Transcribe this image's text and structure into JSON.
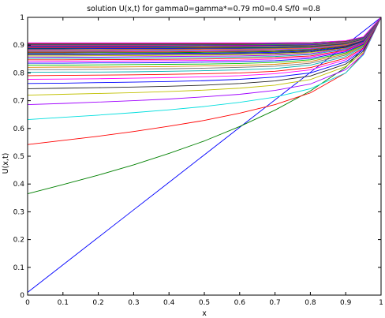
{
  "chart_data": {
    "type": "line",
    "title": "solution U(x,t) for gamma0=gamma*=0.79  m0=0.4  S/f0 =0.8",
    "xlabel": "x",
    "ylabel": "U(x,t)",
    "xlim": [
      0,
      1
    ],
    "ylim": [
      0,
      1
    ],
    "xticks": [
      "0",
      "0.1",
      "0.2",
      "0.3",
      "0.4",
      "0.5",
      "0.6",
      "0.7",
      "0.8",
      "0.9",
      "1"
    ],
    "yticks": [
      "0",
      "0.1",
      "0.2",
      "0.3",
      "0.4",
      "0.5",
      "0.6",
      "0.7",
      "0.8",
      "0.9",
      "1"
    ],
    "grid": false,
    "legend": "none",
    "x": [
      0,
      0.1,
      0.2,
      0.3,
      0.4,
      0.5,
      0.6,
      0.7,
      0.8,
      0.9,
      0.95,
      1
    ],
    "series": [
      {
        "color": "#0000ff",
        "values": [
          0.01,
          0.109,
          0.208,
          0.307,
          0.406,
          0.505,
          0.604,
          0.703,
          0.802,
          0.901,
          0.95,
          1.0
        ]
      },
      {
        "color": "#008000",
        "values": [
          0.365,
          0.398,
          0.432,
          0.469,
          0.51,
          0.555,
          0.607,
          0.666,
          0.735,
          0.82,
          0.89,
          1.0
        ]
      },
      {
        "color": "#ff0000",
        "values": [
          0.542,
          0.557,
          0.572,
          0.589,
          0.608,
          0.629,
          0.655,
          0.686,
          0.728,
          0.8,
          0.87,
          1.0
        ]
      },
      {
        "color": "#00dede",
        "values": [
          0.632,
          0.64,
          0.648,
          0.657,
          0.667,
          0.679,
          0.694,
          0.713,
          0.743,
          0.8,
          0.865,
          1.0
        ]
      },
      {
        "color": "#a000ff",
        "values": [
          0.686,
          0.69,
          0.695,
          0.7,
          0.706,
          0.714,
          0.723,
          0.737,
          0.76,
          0.812,
          0.868,
          1.0
        ]
      },
      {
        "color": "#c0c000",
        "values": [
          0.72,
          0.723,
          0.726,
          0.729,
          0.733,
          0.738,
          0.745,
          0.756,
          0.776,
          0.823,
          0.873,
          1.0
        ]
      },
      {
        "color": "#222222",
        "values": [
          0.743,
          0.745,
          0.747,
          0.749,
          0.752,
          0.756,
          0.762,
          0.771,
          0.789,
          0.832,
          0.878,
          1.0
        ]
      },
      {
        "color": "#0000ff",
        "values": [
          0.762,
          0.763,
          0.765,
          0.767,
          0.769,
          0.772,
          0.777,
          0.785,
          0.8,
          0.84,
          0.883,
          1.0
        ]
      },
      {
        "color": "#ff00ff",
        "values": [
          0.777,
          0.778,
          0.779,
          0.781,
          0.783,
          0.786,
          0.79,
          0.797,
          0.811,
          0.847,
          0.887,
          1.0
        ]
      },
      {
        "color": "#ff0000",
        "values": [
          0.79,
          0.791,
          0.792,
          0.793,
          0.795,
          0.797,
          0.8,
          0.806,
          0.819,
          0.853,
          0.89,
          1.0
        ]
      },
      {
        "color": "#00b0b0",
        "values": [
          0.802,
          0.803,
          0.803,
          0.804,
          0.806,
          0.808,
          0.811,
          0.816,
          0.828,
          0.859,
          0.894,
          1.0
        ]
      },
      {
        "color": "#707070",
        "values": [
          0.812,
          0.812,
          0.813,
          0.814,
          0.815,
          0.817,
          0.82,
          0.824,
          0.835,
          0.864,
          0.897,
          1.0
        ]
      },
      {
        "color": "#e08000",
        "values": [
          0.82,
          0.821,
          0.821,
          0.822,
          0.823,
          0.825,
          0.827,
          0.831,
          0.841,
          0.868,
          0.9,
          1.0
        ]
      },
      {
        "color": "#00c000",
        "values": [
          0.828,
          0.828,
          0.829,
          0.83,
          0.831,
          0.832,
          0.834,
          0.838,
          0.847,
          0.872,
          0.902,
          1.0
        ]
      },
      {
        "color": "#0000ff",
        "values": [
          0.835,
          0.835,
          0.836,
          0.836,
          0.837,
          0.839,
          0.841,
          0.844,
          0.852,
          0.876,
          0.904,
          1.0
        ]
      },
      {
        "color": "#ff00ff",
        "values": [
          0.841,
          0.842,
          0.842,
          0.843,
          0.844,
          0.845,
          0.846,
          0.85,
          0.857,
          0.879,
          0.906,
          1.0
        ]
      },
      {
        "color": "#ff0000",
        "values": [
          0.847,
          0.847,
          0.848,
          0.848,
          0.849,
          0.85,
          0.852,
          0.855,
          0.861,
          0.882,
          0.908,
          1.0
        ]
      },
      {
        "color": "#00b0b0",
        "values": [
          0.852,
          0.853,
          0.853,
          0.853,
          0.854,
          0.855,
          0.857,
          0.859,
          0.866,
          0.885,
          0.91,
          1.0
        ]
      },
      {
        "color": "#a000ff",
        "values": [
          0.857,
          0.857,
          0.857,
          0.858,
          0.859,
          0.86,
          0.861,
          0.864,
          0.869,
          0.888,
          0.911,
          1.0
        ]
      },
      {
        "color": "#c0c000",
        "values": [
          0.861,
          0.861,
          0.862,
          0.862,
          0.863,
          0.864,
          0.865,
          0.867,
          0.873,
          0.89,
          0.913,
          1.0
        ]
      },
      {
        "color": "#222222",
        "values": [
          0.865,
          0.865,
          0.866,
          0.866,
          0.867,
          0.867,
          0.869,
          0.871,
          0.876,
          0.892,
          0.914,
          1.0
        ]
      },
      {
        "color": "#0000ff",
        "values": [
          0.869,
          0.869,
          0.869,
          0.87,
          0.87,
          0.871,
          0.872,
          0.874,
          0.879,
          0.894,
          0.915,
          1.0
        ]
      },
      {
        "color": "#008000",
        "values": [
          0.872,
          0.872,
          0.873,
          0.873,
          0.873,
          0.874,
          0.875,
          0.877,
          0.882,
          0.896,
          0.917,
          1.0
        ]
      },
      {
        "color": "#ff0000",
        "values": [
          0.875,
          0.875,
          0.876,
          0.876,
          0.876,
          0.877,
          0.878,
          0.88,
          0.884,
          0.898,
          0.918,
          1.0
        ]
      },
      {
        "color": "#00b0b0",
        "values": [
          0.878,
          0.878,
          0.878,
          0.879,
          0.879,
          0.88,
          0.881,
          0.882,
          0.886,
          0.9,
          0.919,
          1.0
        ]
      },
      {
        "color": "#ff00ff",
        "values": [
          0.881,
          0.881,
          0.881,
          0.881,
          0.882,
          0.882,
          0.883,
          0.885,
          0.888,
          0.901,
          0.92,
          1.0
        ]
      },
      {
        "color": "#e08000",
        "values": [
          0.883,
          0.883,
          0.883,
          0.884,
          0.884,
          0.885,
          0.885,
          0.887,
          0.89,
          0.902,
          0.921,
          1.0
        ]
      },
      {
        "color": "#707070",
        "values": [
          0.885,
          0.885,
          0.886,
          0.886,
          0.886,
          0.887,
          0.887,
          0.889,
          0.892,
          0.904,
          0.922,
          1.0
        ]
      },
      {
        "color": "#0000ff",
        "values": [
          0.887,
          0.887,
          0.888,
          0.888,
          0.888,
          0.889,
          0.889,
          0.891,
          0.894,
          0.905,
          0.922,
          1.0
        ]
      },
      {
        "color": "#008000",
        "values": [
          0.889,
          0.889,
          0.89,
          0.89,
          0.89,
          0.89,
          0.891,
          0.892,
          0.895,
          0.906,
          0.923,
          1.0
        ]
      },
      {
        "color": "#ff0000",
        "values": [
          0.891,
          0.891,
          0.891,
          0.891,
          0.892,
          0.892,
          0.893,
          0.894,
          0.897,
          0.907,
          0.924,
          1.0
        ]
      },
      {
        "color": "#00b0b0",
        "values": [
          0.893,
          0.893,
          0.893,
          0.893,
          0.893,
          0.894,
          0.894,
          0.895,
          0.898,
          0.908,
          0.924,
          1.0
        ]
      },
      {
        "color": "#a000ff",
        "values": [
          0.894,
          0.894,
          0.894,
          0.894,
          0.895,
          0.895,
          0.895,
          0.897,
          0.899,
          0.909,
          0.925,
          1.0
        ]
      },
      {
        "color": "#c0c000",
        "values": [
          0.896,
          0.896,
          0.896,
          0.896,
          0.896,
          0.896,
          0.897,
          0.898,
          0.9,
          0.909,
          0.925,
          1.0
        ]
      },
      {
        "color": "#222222",
        "values": [
          0.897,
          0.897,
          0.897,
          0.897,
          0.897,
          0.898,
          0.898,
          0.899,
          0.901,
          0.91,
          0.926,
          1.0
        ]
      },
      {
        "color": "#0000ff",
        "values": [
          0.898,
          0.898,
          0.898,
          0.898,
          0.898,
          0.899,
          0.899,
          0.9,
          0.902,
          0.911,
          0.926,
          1.0
        ]
      },
      {
        "color": "#ff00ff",
        "values": [
          0.899,
          0.899,
          0.899,
          0.899,
          0.899,
          0.9,
          0.9,
          0.901,
          0.903,
          0.911,
          0.927,
          1.0
        ]
      },
      {
        "color": "#ff0000",
        "values": [
          0.9,
          0.9,
          0.9,
          0.9,
          0.9,
          0.901,
          0.901,
          0.902,
          0.904,
          0.912,
          0.927,
          1.0
        ]
      },
      {
        "color": "#00b0b0",
        "values": [
          0.901,
          0.901,
          0.901,
          0.901,
          0.901,
          0.901,
          0.902,
          0.902,
          0.904,
          0.912,
          0.927,
          1.0
        ]
      },
      {
        "color": "#008000",
        "values": [
          0.902,
          0.902,
          0.902,
          0.902,
          0.902,
          0.902,
          0.902,
          0.903,
          0.905,
          0.913,
          0.928,
          1.0
        ]
      },
      {
        "color": "#e08000",
        "values": [
          0.903,
          0.903,
          0.903,
          0.903,
          0.903,
          0.903,
          0.903,
          0.904,
          0.906,
          0.913,
          0.928,
          1.0
        ]
      },
      {
        "color": "#707070",
        "values": [
          0.903,
          0.903,
          0.903,
          0.903,
          0.903,
          0.903,
          0.904,
          0.904,
          0.906,
          0.913,
          0.928,
          1.0
        ]
      },
      {
        "color": "#0000ff",
        "values": [
          0.904,
          0.904,
          0.904,
          0.904,
          0.904,
          0.904,
          0.904,
          0.905,
          0.907,
          0.914,
          0.928,
          1.0
        ]
      },
      {
        "color": "#a000ff",
        "values": [
          0.905,
          0.905,
          0.905,
          0.905,
          0.905,
          0.905,
          0.905,
          0.906,
          0.907,
          0.914,
          0.929,
          1.0
        ]
      },
      {
        "color": "#ff0000",
        "values": [
          0.905,
          0.905,
          0.905,
          0.905,
          0.905,
          0.905,
          0.905,
          0.906,
          0.908,
          0.914,
          0.929,
          1.0
        ]
      },
      {
        "color": "#00b0b0",
        "values": [
          0.906,
          0.906,
          0.906,
          0.906,
          0.906,
          0.906,
          0.906,
          0.907,
          0.908,
          0.915,
          0.929,
          1.0
        ]
      },
      {
        "color": "#c0c000",
        "values": [
          0.906,
          0.906,
          0.906,
          0.906,
          0.906,
          0.906,
          0.906,
          0.907,
          0.908,
          0.915,
          0.929,
          1.0
        ]
      },
      {
        "color": "#222222",
        "values": [
          0.907,
          0.907,
          0.907,
          0.907,
          0.907,
          0.907,
          0.907,
          0.907,
          0.909,
          0.915,
          0.929,
          1.0
        ]
      },
      {
        "color": "#008000",
        "values": [
          0.907,
          0.907,
          0.907,
          0.907,
          0.907,
          0.907,
          0.907,
          0.908,
          0.909,
          0.915,
          0.929,
          1.0
        ]
      },
      {
        "color": "#ff00ff",
        "values": [
          0.908,
          0.908,
          0.908,
          0.908,
          0.908,
          0.908,
          0.908,
          0.908,
          0.909,
          0.916,
          0.93,
          1.0
        ]
      }
    ]
  }
}
